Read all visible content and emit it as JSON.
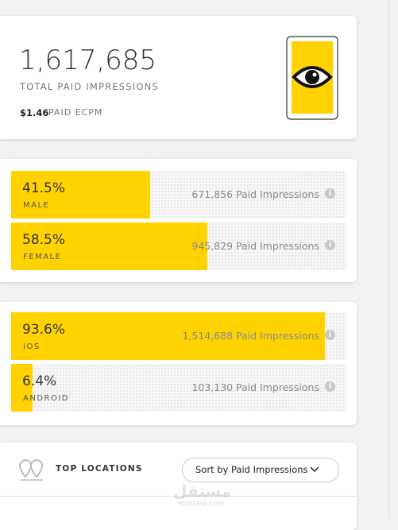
{
  "summary": {
    "total": "1,617,685",
    "total_label": "TOTAL PAID IMPRESSIONS",
    "ecpm": "$1.46",
    "ecpm_label": "PAID ECPM"
  },
  "groups": [
    {
      "rows": [
        {
          "percent": 41.5,
          "percent_label": "41.5%",
          "name": "MALE",
          "impressions": "671,856 Paid Impressions"
        },
        {
          "percent": 58.5,
          "percent_label": "58.5%",
          "name": "FEMALE",
          "impressions": "945,829 Paid Impressions"
        }
      ]
    },
    {
      "rows": [
        {
          "percent": 93.6,
          "percent_label": "93.6%",
          "name": "IOS",
          "impressions": "1,514,688 Paid Impressions"
        },
        {
          "percent": 6.4,
          "percent_label": "6.4%",
          "name": "ANDROID",
          "impressions": "103,130 Paid Impressions"
        }
      ]
    }
  ],
  "locations": {
    "title": "TOP LOCATIONS",
    "sort_button": "Sort by Paid Impressions"
  },
  "watermark": {
    "arabic": "مستقل",
    "site": "mostaql.com"
  }
}
